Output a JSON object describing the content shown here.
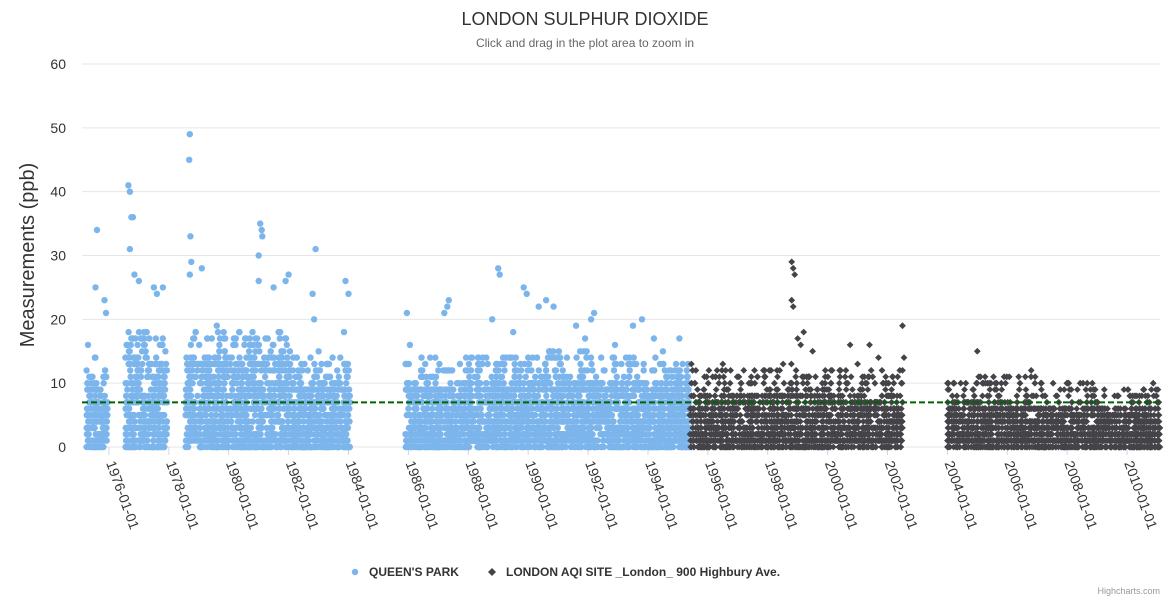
{
  "chart_data": {
    "type": "scatter",
    "title": "LONDON SULPHUR DIOXIDE",
    "subtitle": "Click and drag in the plot area to zoom in",
    "ylabel": "Measurements (ppb)",
    "xlabel": "",
    "ylim": [
      0,
      60
    ],
    "yticks": [
      0,
      10,
      20,
      30,
      40,
      50,
      60
    ],
    "xlim": [
      1975.1,
      2011.1
    ],
    "xticks": [
      "1976-01-01",
      "1978-01-01",
      "1980-01-01",
      "1982-01-01",
      "1984-01-01",
      "1986-01-01",
      "1988-01-01",
      "1990-01-01",
      "1992-01-01",
      "1994-01-01",
      "1996-01-01",
      "1998-01-01",
      "2000-01-01",
      "2002-01-01",
      "2004-01-01",
      "2006-01-01",
      "2008-01-01",
      "2010-01-01"
    ],
    "grid": true,
    "legend_position": "bottom-center",
    "reference_line": {
      "value": 7,
      "color": "#006400",
      "style": "dashed"
    },
    "series": [
      {
        "name": "QUEEN'S PARK",
        "color": "#7cb5ec",
        "marker": "circle",
        "note": "dense daily measurements; mostly 0-12 ppb with peaks listed",
        "segments": [
          {
            "start": 1975.25,
            "end": 1975.95,
            "typical_max": 10,
            "peaks": [
              [
                1975.3,
                16
              ],
              [
                1975.55,
                25
              ],
              [
                1975.6,
                34
              ],
              [
                1975.85,
                23
              ],
              [
                1975.9,
                21
              ]
            ]
          },
          {
            "start": 1976.55,
            "end": 1977.95,
            "typical_max": 14,
            "peaks": [
              [
                1976.65,
                41
              ],
              [
                1976.7,
                40
              ],
              [
                1976.75,
                36
              ],
              [
                1976.8,
                36
              ],
              [
                1976.7,
                31
              ],
              [
                1976.85,
                27
              ],
              [
                1977.0,
                26
              ],
              [
                1977.5,
                25
              ],
              [
                1977.8,
                25
              ],
              [
                1977.6,
                24
              ]
            ]
          },
          {
            "start": 1978.55,
            "end": 1980.0,
            "typical_max": 14,
            "peaks": [
              [
                1978.7,
                49
              ],
              [
                1978.68,
                45
              ],
              [
                1978.72,
                33
              ],
              [
                1978.75,
                29
              ],
              [
                1979.1,
                28
              ],
              [
                1978.7,
                27
              ],
              [
                1979.6,
                19
              ]
            ]
          },
          {
            "start": 1980.05,
            "end": 1982.05,
            "typical_max": 14,
            "peaks": [
              [
                1981.05,
                35
              ],
              [
                1981.1,
                34
              ],
              [
                1981.12,
                33
              ],
              [
                1981.0,
                30
              ],
              [
                1981.5,
                25
              ],
              [
                1982.0,
                27
              ],
              [
                1981.9,
                26
              ],
              [
                1981.0,
                26
              ]
            ]
          },
          {
            "start": 1982.1,
            "end": 1984.05,
            "typical_max": 10,
            "peaks": [
              [
                1982.9,
                31
              ],
              [
                1982.8,
                24
              ],
              [
                1983.9,
                26
              ],
              [
                1984.0,
                24
              ],
              [
                1983.85,
                18
              ],
              [
                1982.85,
                20
              ],
              [
                1983.0,
                15
              ]
            ]
          },
          {
            "start": 1985.9,
            "end": 1988.0,
            "typical_max": 10,
            "peaks": [
              [
                1985.95,
                21
              ],
              [
                1986.05,
                16
              ],
              [
                1987.2,
                21
              ],
              [
                1987.35,
                23
              ],
              [
                1987.3,
                22
              ],
              [
                1986.9,
                14
              ]
            ]
          },
          {
            "start": 1988.0,
            "end": 1990.0,
            "typical_max": 10,
            "peaks": [
              [
                1989.0,
                28
              ],
              [
                1989.05,
                27
              ],
              [
                1988.8,
                20
              ],
              [
                1989.5,
                18
              ],
              [
                1989.85,
                25
              ],
              [
                1989.95,
                24
              ],
              [
                1988.6,
                14
              ]
            ]
          },
          {
            "start": 1990.0,
            "end": 1992.0,
            "typical_max": 11,
            "peaks": [
              [
                1990.35,
                22
              ],
              [
                1990.6,
                23
              ],
              [
                1990.85,
                22
              ],
              [
                1991.6,
                19
              ],
              [
                1991.9,
                17
              ]
            ]
          },
          {
            "start": 1992.0,
            "end": 1995.4,
            "typical_max": 10,
            "peaks": [
              [
                1992.1,
                20
              ],
              [
                1992.2,
                21
              ],
              [
                1992.9,
                16
              ],
              [
                1993.5,
                19
              ],
              [
                1993.8,
                20
              ],
              [
                1994.2,
                17
              ],
              [
                1994.5,
                15
              ],
              [
                1995.05,
                17
              ],
              [
                1995.3,
                11
              ]
            ]
          }
        ]
      },
      {
        "name": "LONDON AQI SITE _London_ 900 Highbury Ave.",
        "color": "#434348",
        "marker": "diamond",
        "note": "dense daily measurements; mostly 0-8 ppb with peaks listed",
        "segments": [
          {
            "start": 1995.4,
            "end": 1998.0,
            "typical_max": 8,
            "peaks": [
              [
                1995.45,
                13
              ],
              [
                1995.6,
                12
              ],
              [
                1996.5,
                13
              ],
              [
                1997.2,
                12
              ],
              [
                1997.9,
                12
              ]
            ]
          },
          {
            "start": 1998.0,
            "end": 2000.0,
            "typical_max": 9,
            "peaks": [
              [
                1998.8,
                29
              ],
              [
                1998.85,
                28
              ],
              [
                1998.9,
                27
              ],
              [
                1998.8,
                23
              ],
              [
                1998.85,
                22
              ],
              [
                1999.2,
                18
              ],
              [
                1999.0,
                17
              ],
              [
                1999.5,
                15
              ],
              [
                1999.1,
                16
              ],
              [
                1998.4,
                12
              ]
            ]
          },
          {
            "start": 2000.0,
            "end": 2002.5,
            "typical_max": 8,
            "peaks": [
              [
                2000.75,
                16
              ],
              [
                2001.4,
                16
              ],
              [
                2001.0,
                13
              ],
              [
                2001.7,
                14
              ],
              [
                2002.5,
                19
              ],
              [
                2002.55,
                14
              ],
              [
                2002.5,
                12
              ]
            ]
          },
          {
            "start": 2004.0,
            "end": 2007.0,
            "typical_max": 7,
            "peaks": [
              [
                2004.2,
                10
              ],
              [
                2005.0,
                15
              ],
              [
                2005.2,
                10
              ],
              [
                2005.8,
                10
              ],
              [
                2006.8,
                12
              ],
              [
                2006.4,
                9
              ]
            ]
          },
          {
            "start": 2007.0,
            "end": 2011.1,
            "typical_max": 6,
            "peaks": [
              [
                2008.05,
                10
              ],
              [
                2007.9,
                9
              ],
              [
                2008.9,
                8
              ],
              [
                2009.9,
                6
              ],
              [
                2010.4,
                5
              ],
              [
                2010.9,
                5
              ]
            ]
          }
        ]
      }
    ]
  },
  "credit": "Highcharts.com"
}
